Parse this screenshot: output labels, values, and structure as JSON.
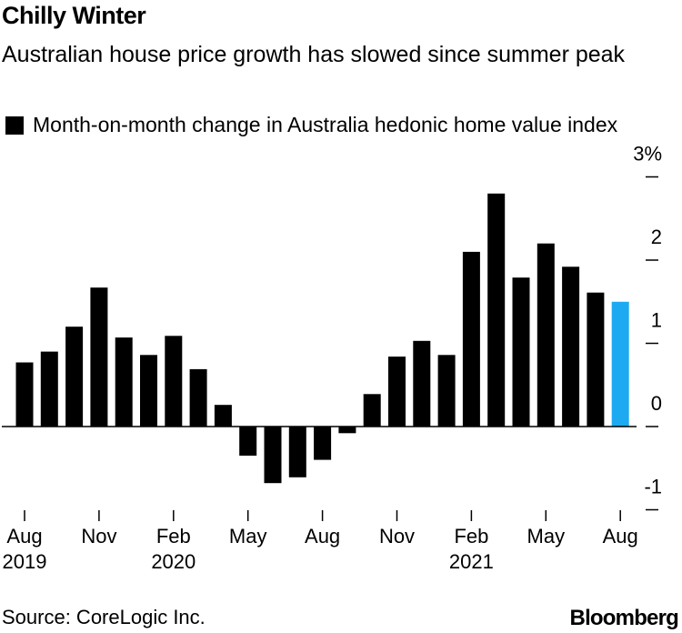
{
  "header": {
    "title": "Chilly Winter",
    "subtitle": "Australian house price growth has slowed since summer peak"
  },
  "legend": {
    "label": "Month-on-month change in Australia hedonic home value index"
  },
  "footer": {
    "source": "Source: CoreLogic Inc.",
    "brand": "Bloomberg"
  },
  "colors": {
    "bar": "#000000",
    "highlight": "#1eaaf1"
  },
  "chart_data": {
    "type": "bar",
    "title": "Chilly Winter",
    "subtitle": "Australian house price growth has slowed since summer peak",
    "series_name": "Month-on-month change in Australia hedonic home value index",
    "categories": [
      "Aug 2019",
      "Sep 2019",
      "Oct 2019",
      "Nov 2019",
      "Dec 2019",
      "Jan 2020",
      "Feb 2020",
      "Mar 2020",
      "Apr 2020",
      "May 2020",
      "Jun 2020",
      "Jul 2020",
      "Aug 2020",
      "Sep 2020",
      "Oct 2020",
      "Nov 2020",
      "Dec 2020",
      "Jan 2021",
      "Feb 2021",
      "Mar 2021",
      "Apr 2021",
      "May 2021",
      "Jun 2021",
      "Jul 2021",
      "Aug 2021"
    ],
    "values": [
      0.77,
      0.9,
      1.2,
      1.67,
      1.07,
      0.86,
      1.09,
      0.69,
      0.26,
      -0.35,
      -0.68,
      -0.61,
      -0.4,
      -0.08,
      0.39,
      0.84,
      1.03,
      0.86,
      2.1,
      2.8,
      1.79,
      2.2,
      1.92,
      1.61,
      1.5
    ],
    "highlight_index": 24,
    "ylim": [
      -1,
      3
    ],
    "yticks": [
      -1,
      0,
      1,
      2,
      3
    ],
    "ytick_labels": [
      "-1",
      "0",
      "1",
      "2",
      "3%"
    ],
    "xticks": [
      {
        "index": 0,
        "month": "Aug",
        "year": "2019"
      },
      {
        "index": 3,
        "month": "Nov",
        "year": ""
      },
      {
        "index": 6,
        "month": "Feb",
        "year": "2020"
      },
      {
        "index": 9,
        "month": "May",
        "year": ""
      },
      {
        "index": 12,
        "month": "Aug",
        "year": ""
      },
      {
        "index": 15,
        "month": "Nov",
        "year": ""
      },
      {
        "index": 18,
        "month": "Feb",
        "year": "2021"
      },
      {
        "index": 21,
        "month": "May",
        "year": ""
      },
      {
        "index": 24,
        "month": "Aug",
        "year": ""
      }
    ],
    "xlabel": "",
    "ylabel": "",
    "grid": false,
    "y_axis_side": "right"
  }
}
